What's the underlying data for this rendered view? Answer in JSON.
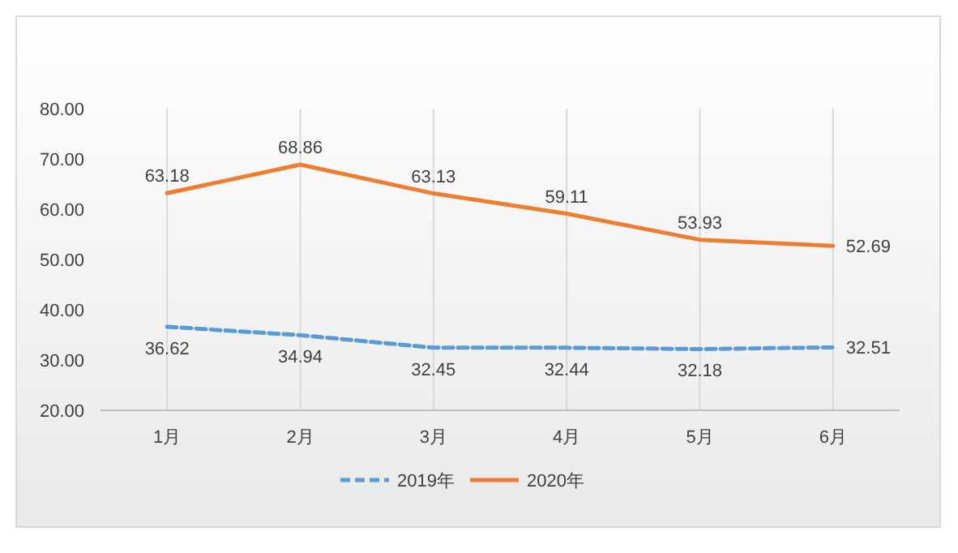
{
  "chart_data": {
    "type": "line",
    "categories": [
      "1月",
      "2月",
      "3月",
      "4月",
      "5月",
      "6月"
    ],
    "series": [
      {
        "name": "2019年",
        "color": "#5b9bd5",
        "line_style": "dashed",
        "values": [
          36.62,
          34.94,
          32.45,
          32.44,
          32.18,
          32.51
        ]
      },
      {
        "name": "2020年",
        "color": "#ed7d31",
        "line_style": "solid",
        "values": [
          63.18,
          68.86,
          63.13,
          59.11,
          53.93,
          52.69
        ]
      }
    ],
    "ylim": [
      20,
      80
    ],
    "yticks": [
      {
        "value": 20,
        "label": "20.00"
      },
      {
        "value": 30,
        "label": "30.00"
      },
      {
        "value": 40,
        "label": "40.00"
      },
      {
        "value": 50,
        "label": "50.00"
      },
      {
        "value": 60,
        "label": "60.00"
      },
      {
        "value": 70,
        "label": "70.00"
      },
      {
        "value": 80,
        "label": "80.00"
      }
    ],
    "grid": "x",
    "legend": "bottom",
    "data_labels": true,
    "marker": "none"
  }
}
